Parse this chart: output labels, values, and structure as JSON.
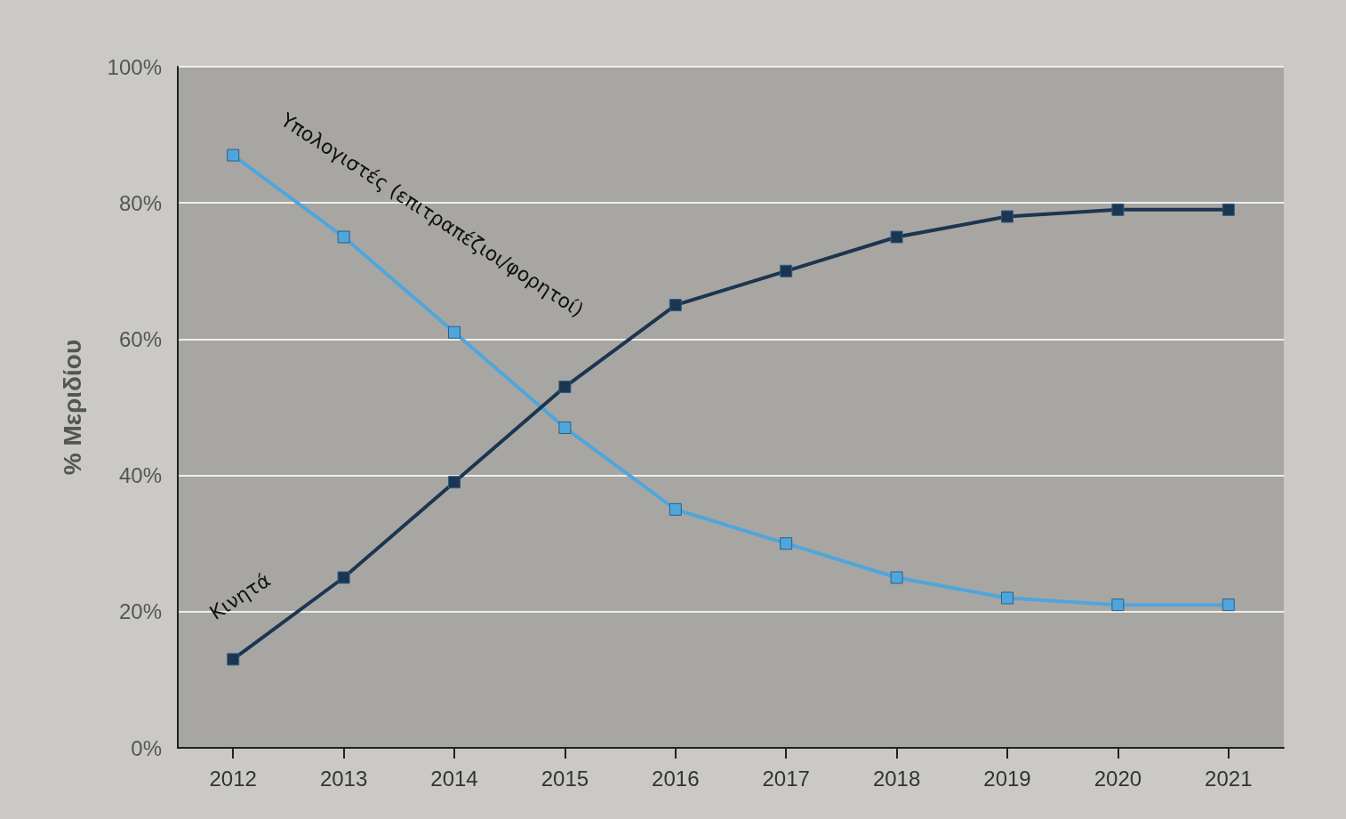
{
  "chart_data": {
    "type": "line",
    "ylabel": "% Μεριδίου",
    "categories": [
      "2012",
      "2013",
      "2014",
      "2015",
      "2016",
      "2017",
      "2018",
      "2019",
      "2020",
      "2021"
    ],
    "series": [
      {
        "name": "Υπολογιστές (επιτραπέζιοι/φορητοί)",
        "color": "#4fa6dc",
        "values": [
          87,
          75,
          61,
          47,
          35,
          30,
          25,
          22,
          21,
          21
        ]
      },
      {
        "name": "Κινητά",
        "color": "#1c3550",
        "values": [
          13,
          25,
          39,
          53,
          65,
          70,
          75,
          78,
          79,
          79
        ]
      }
    ],
    "ylim": [
      0,
      100
    ],
    "yticks": [
      {
        "value": 0,
        "label": "0%"
      },
      {
        "value": 20,
        "label": "20%"
      },
      {
        "value": 40,
        "label": "40%"
      },
      {
        "value": 60,
        "label": "60%"
      },
      {
        "value": 80,
        "label": "80%"
      },
      {
        "value": 100,
        "label": "100%"
      }
    ],
    "grid": "y",
    "marker": "square",
    "line_style": "solid",
    "legend": false
  }
}
